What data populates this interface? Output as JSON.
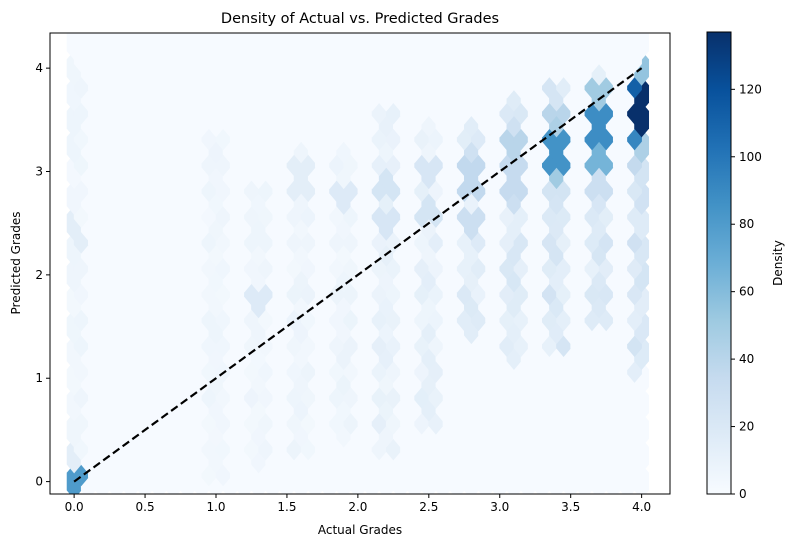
{
  "chart_data": {
    "type": "heatmap",
    "subtype": "hexbin",
    "title": "Density of Actual vs. Predicted Grades",
    "xlabel": "Actual Grades",
    "ylabel": "Predicted Grades",
    "xlim": [
      -0.17,
      4.2
    ],
    "ylim": [
      -0.12,
      4.34
    ],
    "xticks": [
      0.0,
      0.5,
      1.0,
      1.5,
      2.0,
      2.5,
      3.0,
      3.5,
      4.0
    ],
    "xtick_labels": [
      "0.0",
      "0.5",
      "1.0",
      "1.5",
      "2.0",
      "2.5",
      "3.0",
      "3.5",
      "4.0"
    ],
    "yticks": [
      0,
      1,
      2,
      3,
      4
    ],
    "ytick_labels": [
      "0",
      "1",
      "2",
      "3",
      "4"
    ],
    "grid": false,
    "colormap": "Blues",
    "colorbar": {
      "label": "Density",
      "min": 0,
      "max": 137,
      "ticks": [
        0,
        20,
        40,
        60,
        80,
        100,
        120
      ],
      "tick_labels": [
        "0",
        "20",
        "40",
        "60",
        "80",
        "100",
        "120"
      ]
    },
    "hex_grid": {
      "x_min": 0.0,
      "x_max": 4.0,
      "y_min": 0.0,
      "y_max": 4.25,
      "nx": 40,
      "ny": 17,
      "background_count": 1
    },
    "columns": [
      {
        "x": 0.0,
        "y_min": 0.0,
        "y_max": 4.0,
        "base": 5
      },
      {
        "x": 1.0,
        "y_min": 0.1,
        "y_max": 3.4,
        "base": 5
      },
      {
        "x": 1.3,
        "y_min": 0.3,
        "y_max": 2.8,
        "base": 5
      },
      {
        "x": 1.6,
        "y_min": 0.4,
        "y_max": 3.2,
        "base": 6
      },
      {
        "x": 1.9,
        "y_min": 0.5,
        "y_max": 3.2,
        "base": 6
      },
      {
        "x": 2.2,
        "y_min": 0.4,
        "y_max": 3.55,
        "base": 9
      },
      {
        "x": 2.5,
        "y_min": 0.6,
        "y_max": 3.5,
        "base": 10
      },
      {
        "x": 2.8,
        "y_min": 1.5,
        "y_max": 3.5,
        "base": 14
      },
      {
        "x": 3.1,
        "y_min": 1.3,
        "y_max": 3.75,
        "base": 16
      },
      {
        "x": 3.4,
        "y_min": 1.4,
        "y_max": 3.9,
        "base": 18
      },
      {
        "x": 3.7,
        "y_min": 1.6,
        "y_max": 4.0,
        "base": 18
      },
      {
        "x": 4.0,
        "y_min": 1.2,
        "y_max": 4.0,
        "base": 20
      }
    ],
    "hotspots": [
      {
        "x": 0.0,
        "y": 0.0,
        "value": 80
      },
      {
        "x": 0.0,
        "y": 0.12,
        "value": 14
      },
      {
        "x": 0.0,
        "y": 2.4,
        "value": 14
      },
      {
        "x": 1.6,
        "y": 3.0,
        "value": 14
      },
      {
        "x": 1.3,
        "y": 1.8,
        "value": 18
      },
      {
        "x": 1.9,
        "y": 2.8,
        "value": 18
      },
      {
        "x": 2.2,
        "y": 2.9,
        "value": 24
      },
      {
        "x": 2.2,
        "y": 2.55,
        "value": 22
      },
      {
        "x": 2.5,
        "y": 2.7,
        "value": 24
      },
      {
        "x": 2.5,
        "y": 3.1,
        "value": 22
      },
      {
        "x": 2.8,
        "y": 3.0,
        "value": 36
      },
      {
        "x": 2.8,
        "y": 2.9,
        "value": 34
      },
      {
        "x": 2.8,
        "y": 2.6,
        "value": 30
      },
      {
        "x": 2.8,
        "y": 3.2,
        "value": 28
      },
      {
        "x": 3.1,
        "y": 3.1,
        "value": 34
      },
      {
        "x": 3.1,
        "y": 3.3,
        "value": 40
      },
      {
        "x": 3.1,
        "y": 2.95,
        "value": 34
      },
      {
        "x": 3.1,
        "y": 2.85,
        "value": 30
      },
      {
        "x": 3.1,
        "y": 3.45,
        "value": 28
      },
      {
        "x": 3.4,
        "y": 3.25,
        "value": 85
      },
      {
        "x": 3.4,
        "y": 3.1,
        "value": 50
      },
      {
        "x": 3.4,
        "y": 3.4,
        "value": 45
      },
      {
        "x": 3.4,
        "y": 3.55,
        "value": 40
      },
      {
        "x": 3.4,
        "y": 2.95,
        "value": 25
      },
      {
        "x": 3.7,
        "y": 3.5,
        "value": 88
      },
      {
        "x": 3.7,
        "y": 3.6,
        "value": 80
      },
      {
        "x": 3.7,
        "y": 3.4,
        "value": 75
      },
      {
        "x": 3.7,
        "y": 3.25,
        "value": 65
      },
      {
        "x": 3.7,
        "y": 3.75,
        "value": 50
      },
      {
        "x": 3.7,
        "y": 3.15,
        "value": 40
      },
      {
        "x": 3.7,
        "y": 3.0,
        "value": 30
      },
      {
        "x": 4.0,
        "y": 3.62,
        "value": 137
      },
      {
        "x": 4.0,
        "y": 3.78,
        "value": 112
      },
      {
        "x": 4.0,
        "y": 3.48,
        "value": 92
      },
      {
        "x": 4.0,
        "y": 3.95,
        "value": 55
      },
      {
        "x": 4.0,
        "y": 3.35,
        "value": 45
      },
      {
        "x": 4.0,
        "y": 3.2,
        "value": 35
      },
      {
        "x": 4.0,
        "y": 3.05,
        "value": 25
      }
    ],
    "reference_line": {
      "style": "dashed",
      "color": "#000000",
      "x": [
        0.0,
        4.0
      ],
      "y": [
        0.0,
        4.0
      ]
    }
  }
}
